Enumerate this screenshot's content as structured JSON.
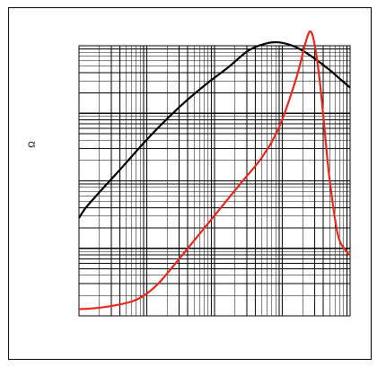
{
  "chart_data": {
    "type": "line",
    "title": "",
    "xlabel": "",
    "ylabel": "Ω",
    "x_scale": "log",
    "y_scale": "log",
    "grid": true,
    "legend": "none",
    "x_decades": 4,
    "y_decades": 4,
    "series": [
      {
        "color": "#000000",
        "x": [
          0,
          0.1,
          0.3,
          0.6,
          1.0,
          1.3,
          1.6,
          1.9,
          2.2,
          2.5,
          2.75,
          2.95,
          3.2,
          3.45,
          3.7,
          3.85,
          4.0
        ],
        "y": [
          1.45,
          1.6,
          1.83,
          2.16,
          2.61,
          2.92,
          3.2,
          3.45,
          3.68,
          3.93,
          4.03,
          4.05,
          3.98,
          3.83,
          3.64,
          3.51,
          3.38
        ]
      },
      {
        "color": "#e8261c",
        "x": [
          0,
          0.2,
          0.5,
          0.8,
          1.0,
          1.2,
          1.5,
          1.8,
          2.1,
          2.4,
          2.7,
          2.95,
          3.2,
          3.35,
          3.42,
          3.48,
          3.55,
          3.62,
          3.7,
          3.82,
          3.95,
          4.0
        ],
        "y": [
          0.1,
          0.11,
          0.15,
          0.22,
          0.33,
          0.51,
          0.87,
          1.24,
          1.61,
          1.98,
          2.35,
          2.79,
          3.5,
          4.07,
          4.21,
          4.0,
          3.5,
          2.8,
          2.0,
          1.2,
          0.95,
          0.9
        ]
      }
    ]
  }
}
